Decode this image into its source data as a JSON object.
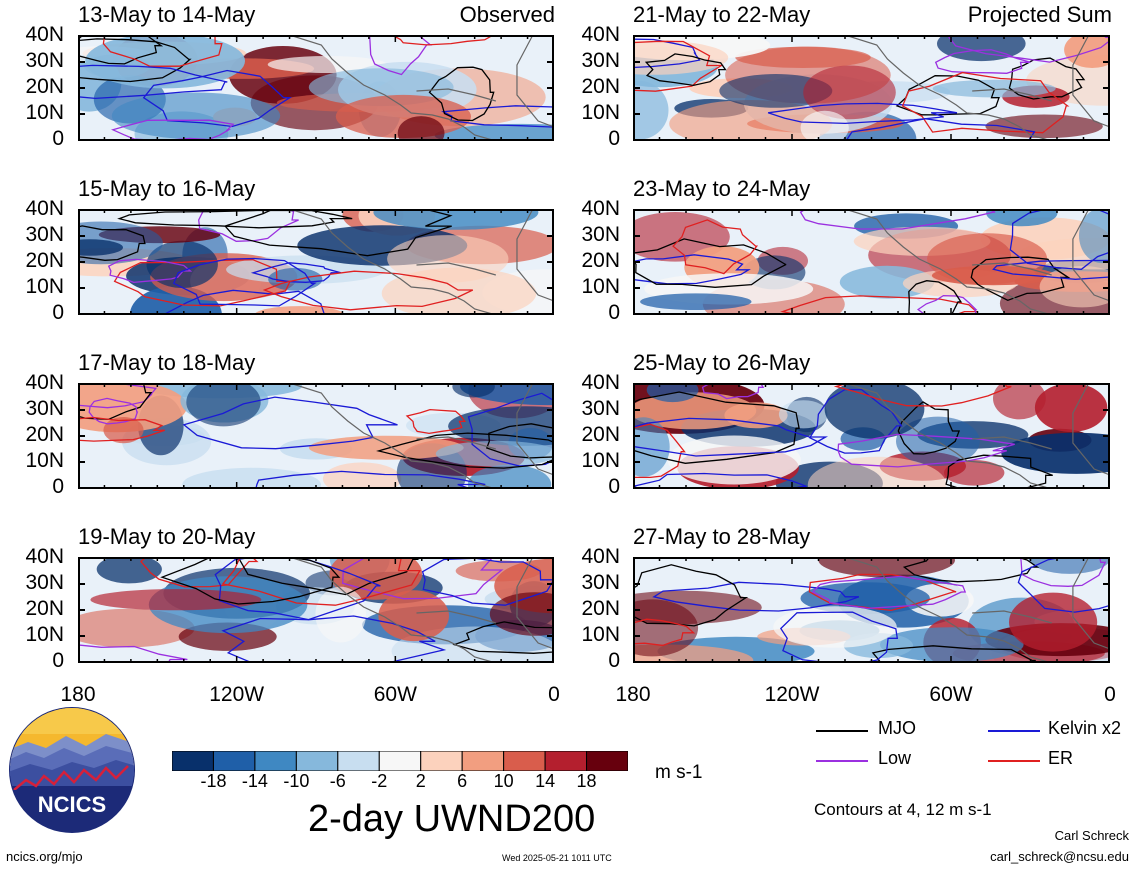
{
  "panels": {
    "left": [
      {
        "title": "13-May to 14-May",
        "label": "Observed"
      },
      {
        "title": "15-May to 16-May",
        "label": ""
      },
      {
        "title": "17-May to 18-May",
        "label": ""
      },
      {
        "title": "19-May to 20-May",
        "label": ""
      }
    ],
    "right": [
      {
        "title": "21-May to 22-May",
        "label": "Projected Sum"
      },
      {
        "title": "23-May to 24-May",
        "label": ""
      },
      {
        "title": "25-May to 26-May",
        "label": ""
      },
      {
        "title": "27-May to 28-May",
        "label": ""
      }
    ]
  },
  "lat_labels": [
    "40N",
    "30N",
    "20N",
    "10N",
    "0"
  ],
  "lon_labels": [
    "180",
    "120W",
    "60W",
    "0"
  ],
  "colorbar": {
    "ticks": [
      "-18",
      "-14",
      "-10",
      "-6",
      "-2",
      "2",
      "6",
      "10",
      "14",
      "18"
    ],
    "colors": [
      "#08306b",
      "#1f5fa8",
      "#3f88c2",
      "#86b8dc",
      "#c8def0",
      "#f7f7f7",
      "#fcd2bd",
      "#f29e80",
      "#d95d4c",
      "#b41f2e",
      "#67000d"
    ],
    "units": "m s-1"
  },
  "legend": {
    "items": [
      {
        "label": "MJO",
        "color": "#000000"
      },
      {
        "label": "Kelvin x2",
        "color": "#1a1ad6"
      },
      {
        "label": "Low",
        "color": "#9b30e0"
      },
      {
        "label": "ER",
        "color": "#e02020"
      }
    ],
    "contour_note": "Contours at 4, 12 m s-1"
  },
  "main_title": "2-day UWND200",
  "logo_text": "NCICS",
  "footer": {
    "url": "ncics.org/mjo",
    "timestamp": "Wed 2025-05-21 1011 UTC",
    "author": "Carl Schreck",
    "email": "carl_schreck@ncsu.edu"
  }
}
